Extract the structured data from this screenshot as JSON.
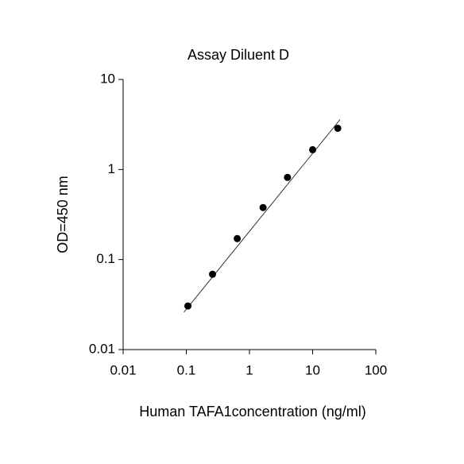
{
  "chart_data": {
    "type": "scatter",
    "title": "Assay Diluent D",
    "xlabel": "Human TAFA1concentration (ng/ml)",
    "ylabel": "OD=450 nm",
    "xscale": "log",
    "yscale": "log",
    "xlim": [
      0.01,
      100
    ],
    "ylim": [
      0.01,
      10
    ],
    "xticks": [
      0.01,
      0.1,
      1,
      10,
      100
    ],
    "yticks": [
      0.01,
      0.1,
      1,
      10
    ],
    "series": [
      {
        "color": "#000000",
        "x": [
          0.106,
          0.26,
          0.64,
          1.64,
          4.0,
          10,
          25
        ],
        "values": [
          0.0305,
          0.0687,
          0.171,
          0.378,
          0.817,
          1.66,
          2.87
        ]
      }
    ],
    "fit_line": {
      "color": "#333333",
      "x": [
        0.0917,
        27.2
      ],
      "values": [
        0.026,
        3.59
      ]
    }
  }
}
